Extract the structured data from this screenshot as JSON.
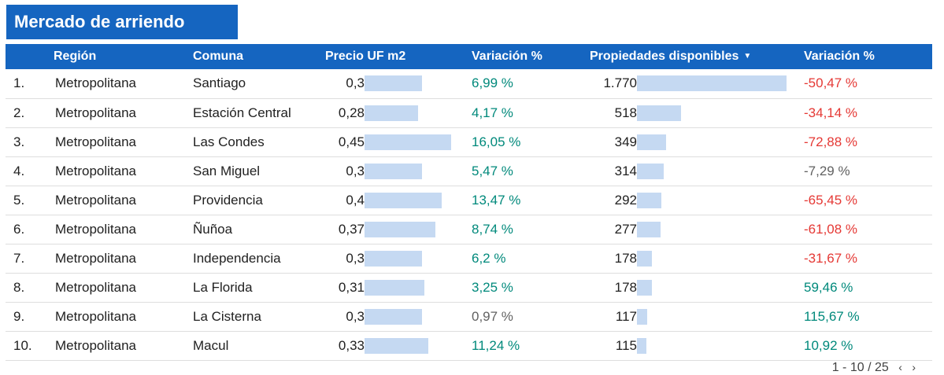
{
  "title": "Mercado de arriendo",
  "headers": {
    "num": "",
    "region": "Región",
    "comuna": "Comuna",
    "precio": "Precio UF m2",
    "variacion1": "Variación %",
    "propiedades": "Propiedades disponibles",
    "variacion2": "Variación %"
  },
  "rows": [
    {
      "num": "1.",
      "region": "Metropolitana",
      "comuna": "Santiago",
      "precio": "0,3",
      "precio_value": 0.3,
      "var1": "6,99 %",
      "var1_tone": "pos",
      "prop": "1.770",
      "prop_value": 1770,
      "var2": "-50,47 %",
      "var2_tone": "neg"
    },
    {
      "num": "2.",
      "region": "Metropolitana",
      "comuna": "Estación Central",
      "precio": "0,28",
      "precio_value": 0.28,
      "var1": "4,17 %",
      "var1_tone": "pos",
      "prop": "518",
      "prop_value": 518,
      "var2": "-34,14 %",
      "var2_tone": "neg"
    },
    {
      "num": "3.",
      "region": "Metropolitana",
      "comuna": "Las Condes",
      "precio": "0,45",
      "precio_value": 0.45,
      "var1": "16,05 %",
      "var1_tone": "pos",
      "prop": "349",
      "prop_value": 349,
      "var2": "-72,88 %",
      "var2_tone": "neg"
    },
    {
      "num": "4.",
      "region": "Metropolitana",
      "comuna": "San Miguel",
      "precio": "0,3",
      "precio_value": 0.3,
      "var1": "5,47 %",
      "var1_tone": "pos",
      "prop": "314",
      "prop_value": 314,
      "var2": "-7,29 %",
      "var2_tone": "neu"
    },
    {
      "num": "5.",
      "region": "Metropolitana",
      "comuna": "Providencia",
      "precio": "0,4",
      "precio_value": 0.4,
      "var1": "13,47 %",
      "var1_tone": "pos",
      "prop": "292",
      "prop_value": 292,
      "var2": "-65,45 %",
      "var2_tone": "neg"
    },
    {
      "num": "6.",
      "region": "Metropolitana",
      "comuna": "Ñuñoa",
      "precio": "0,37",
      "precio_value": 0.37,
      "var1": "8,74 %",
      "var1_tone": "pos",
      "prop": "277",
      "prop_value": 277,
      "var2": "-61,08 %",
      "var2_tone": "neg"
    },
    {
      "num": "7.",
      "region": "Metropolitana",
      "comuna": "Independencia",
      "precio": "0,3",
      "precio_value": 0.3,
      "var1": "6,2 %",
      "var1_tone": "pos",
      "prop": "178",
      "prop_value": 178,
      "var2": "-31,67 %",
      "var2_tone": "neg"
    },
    {
      "num": "8.",
      "region": "Metropolitana",
      "comuna": "La Florida",
      "precio": "0,31",
      "precio_value": 0.31,
      "var1": "3,25 %",
      "var1_tone": "pos",
      "prop": "178",
      "prop_value": 178,
      "var2": "59,46 %",
      "var2_tone": "pos"
    },
    {
      "num": "9.",
      "region": "Metropolitana",
      "comuna": "La Cisterna",
      "precio": "0,3",
      "precio_value": 0.3,
      "var1": "0,97 %",
      "var1_tone": "neu",
      "prop": "117",
      "prop_value": 117,
      "var2": "115,67 %",
      "var2_tone": "pos"
    },
    {
      "num": "10.",
      "region": "Metropolitana",
      "comuna": "Macul",
      "precio": "0,33",
      "precio_value": 0.33,
      "var1": "11,24 %",
      "var1_tone": "pos",
      "prop": "115",
      "prop_value": 115,
      "var2": "10,92 %",
      "var2_tone": "pos"
    }
  ],
  "pagination": "1 - 10 / 25",
  "colors": {
    "header": "#1565c0",
    "bar": "#c5d9f2",
    "positive": "#00897b",
    "negative": "#e53935",
    "neutral": "#616161"
  },
  "icons": {
    "sort": "sort-descending-icon",
    "prev": "chevron-left-icon",
    "next": "chevron-right-icon"
  }
}
